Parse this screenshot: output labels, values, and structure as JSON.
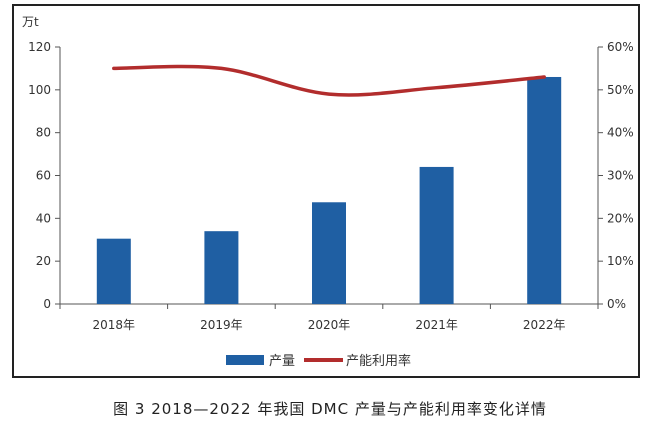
{
  "chart_data": {
    "type": "bar",
    "categories": [
      "2018年",
      "2019年",
      "2020年",
      "2021年",
      "2022年"
    ],
    "series": [
      {
        "name": "产量",
        "type": "bar",
        "axis": "left",
        "color": "#1f5fa3",
        "values": [
          30.5,
          34,
          47.5,
          64,
          106
        ]
      },
      {
        "name": "产能利用率",
        "type": "line",
        "axis": "right",
        "color": "#b22d2d",
        "values": [
          55,
          55,
          49,
          50.5,
          53
        ]
      }
    ],
    "left_axis": {
      "unit": "万t",
      "ticks": [
        "0",
        "20",
        "40",
        "60",
        "80",
        "100",
        "120"
      ],
      "ylim": [
        0,
        120
      ]
    },
    "right_axis": {
      "ticks": [
        "0%",
        "10%",
        "20%",
        "30%",
        "40%",
        "50%",
        "60%"
      ],
      "ylim": [
        0,
        60
      ]
    },
    "legend_position": "bottom"
  },
  "caption": "图 3  2018—2022 年我国 DMC 产量与产能利用率变化详情"
}
